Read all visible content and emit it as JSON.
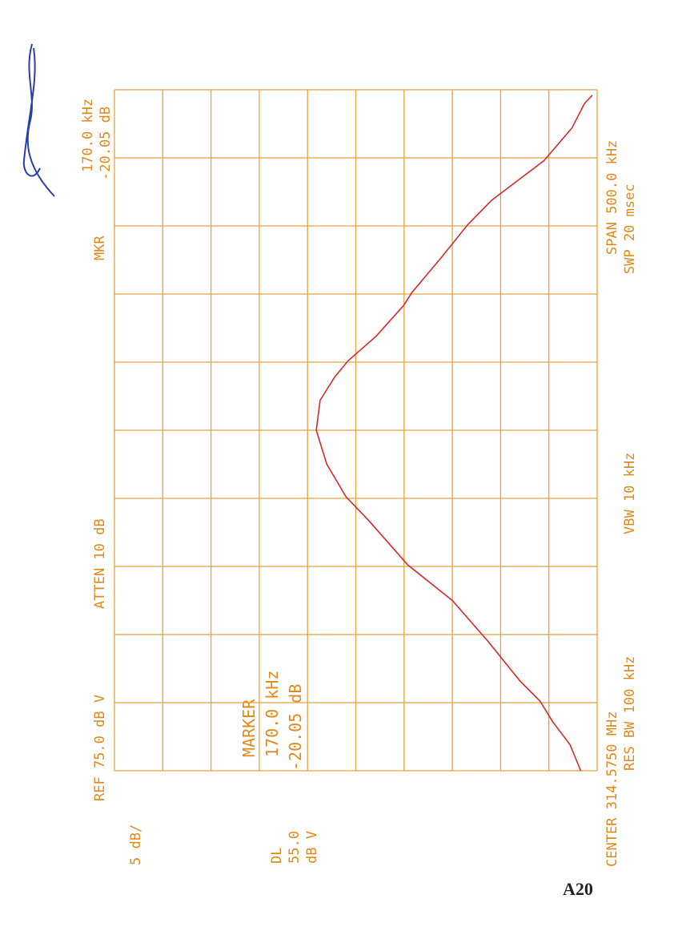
{
  "chart_data": {
    "type": "line",
    "annotations": {
      "ref": "REF 75.0 dB V",
      "atten": "ATTEN 10 dB",
      "mkr": "MKR",
      "mkr_freq": "170.0 kHz",
      "mkr_level": "-20.05 dB",
      "scale": "5 dB/",
      "dl": "DL",
      "dl_level": "55.0",
      "dl_unit": "dB V",
      "marker": "MARKER",
      "marker_freq": "170.0 kHz",
      "marker_level": "-20.05 dB",
      "center": "CENTER 314.5750 MHz",
      "rbw": "RES BW 100 kHz",
      "vbw": "VBW 10 kHz",
      "span": "SPAN 500.0 kHz",
      "swp": "SWP 20 msec"
    },
    "x": [
      -250,
      -231,
      -214,
      -199,
      -184,
      -155,
      -125,
      -99,
      -66,
      -49,
      -25,
      0,
      22,
      39,
      51,
      69,
      92,
      101,
      128,
      151,
      169,
      198,
      222,
      240,
      246
    ],
    "series": [
      {
        "color": "#d42a2a",
        "values": [
          26.7,
          27.8,
          29.6,
          30.9,
          33.0,
          36.3,
          40.0,
          44.6,
          48.7,
          51.0,
          53.0,
          54.1,
          53.7,
          52.2,
          50.8,
          47.9,
          45.0,
          44.2,
          41.0,
          38.4,
          35.9,
          30.5,
          27.6,
          26.3,
          25.5
        ]
      }
    ],
    "xlim": [
      -250,
      250
    ],
    "ylim": [
      25,
      75
    ],
    "xticks": [
      -250,
      -200,
      -150,
      -100,
      -50,
      0,
      50,
      100,
      150,
      200,
      250
    ],
    "yticks": [
      25,
      30,
      35,
      40,
      45,
      50,
      55,
      60,
      65,
      70,
      75
    ],
    "grid": true,
    "grid_color": "#e8a040"
  },
  "page_label": "A20"
}
